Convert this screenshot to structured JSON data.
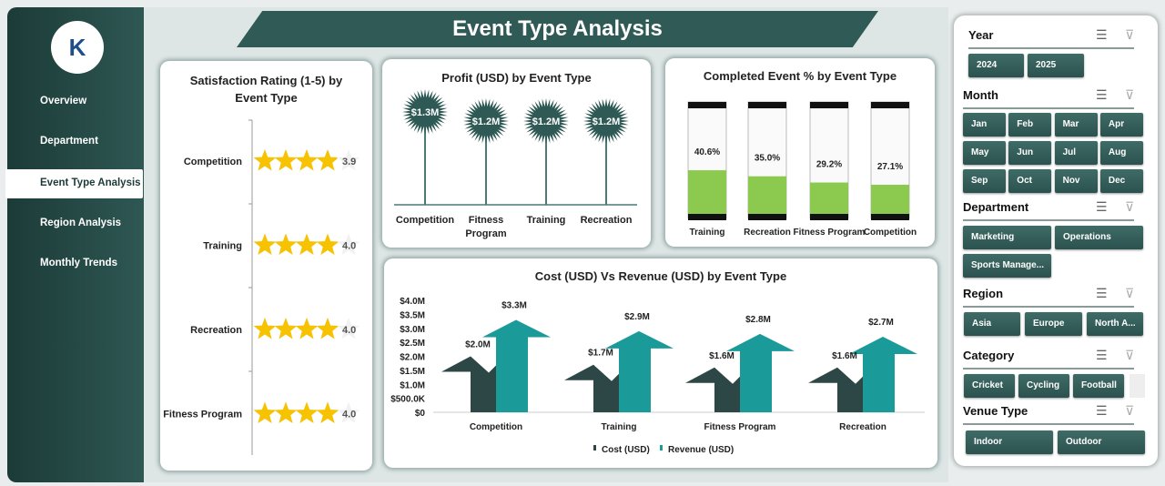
{
  "sidebar": {
    "logo_text": "K",
    "items": [
      {
        "label": "Overview"
      },
      {
        "label": "Department"
      },
      {
        "label": "Event Type Analysis",
        "active": true
      },
      {
        "label": "Region Analysis"
      },
      {
        "label": "Monthly Trends"
      }
    ]
  },
  "header": {
    "title": "Event Type Analysis"
  },
  "colors": {
    "primary": "#2f5a55",
    "star": "#f7c200",
    "fill_green": "#8bc94f",
    "revenue": "#1b9a9a",
    "cost": "#2c4745"
  },
  "chart_data": [
    {
      "type": "bar",
      "title": "Satisfaction Rating (1-5) by Event Type",
      "categories": [
        "Competition",
        "Training",
        "Recreation",
        "Fitness Program"
      ],
      "values": [
        3.9,
        4.0,
        4.0,
        4.0
      ],
      "ylim": [
        0,
        5
      ],
      "labels": [
        "3.9",
        "4.0",
        "4.0",
        "4.0"
      ]
    },
    {
      "type": "bar",
      "title": "Profit (USD) by Event Type",
      "categories": [
        "Competition",
        "Fitness Program",
        "Training",
        "Recreation"
      ],
      "values": [
        1.3,
        1.2,
        1.2,
        1.2
      ],
      "labels": [
        "$1.3M",
        "$1.2M",
        "$1.2M",
        "$1.2M"
      ]
    },
    {
      "type": "bar",
      "title": "Completed Event % by Event Type",
      "categories": [
        "Training",
        "Recreation",
        "Fitness Program",
        "Competition"
      ],
      "values": [
        40.6,
        35.0,
        29.2,
        27.1
      ],
      "labels": [
        "40.6%",
        "35.0%",
        "29.2%",
        "27.1%"
      ],
      "ylim": [
        0,
        100
      ]
    },
    {
      "type": "bar",
      "title": "Cost (USD) Vs Revenue (USD) by Event Type",
      "categories": [
        "Competition",
        "Training",
        "Fitness Program",
        "Recreation"
      ],
      "series": [
        {
          "name": "Cost (USD)",
          "values": [
            2.0,
            1.7,
            1.6,
            1.6
          ],
          "labels": [
            "$2.0M",
            "$1.7M",
            "$1.6M",
            "$1.6M"
          ]
        },
        {
          "name": "Revenue (USD)",
          "values": [
            3.3,
            2.9,
            2.8,
            2.7
          ],
          "labels": [
            "$3.3M",
            "$2.9M",
            "$2.8M",
            "$2.7M"
          ]
        }
      ],
      "ylim": [
        0,
        4
      ],
      "yticks": [
        "$0",
        "$500.0K",
        "$1.0M",
        "$1.5M",
        "$2.0M",
        "$2.5M",
        "$3.0M",
        "$3.5M",
        "$4.0M"
      ],
      "legend": "bottom"
    }
  ],
  "slicers": [
    {
      "title": "Year",
      "items": [
        "2024",
        "2025"
      ]
    },
    {
      "title": "Month",
      "items": [
        "Jan",
        "Feb",
        "Mar",
        "Apr",
        "May",
        "Jun",
        "Jul",
        "Aug",
        "Sep",
        "Oct",
        "Nov",
        "Dec"
      ]
    },
    {
      "title": "Department",
      "items": [
        "Marketing",
        "Operations",
        "Sports Manage..."
      ]
    },
    {
      "title": "Region",
      "items": [
        "Asia",
        "Europe",
        "North A..."
      ]
    },
    {
      "title": "Category",
      "items": [
        "Cricket",
        "Cycling",
        "Football"
      ]
    },
    {
      "title": "Venue Type",
      "items": [
        "Indoor",
        "Outdoor"
      ]
    }
  ]
}
